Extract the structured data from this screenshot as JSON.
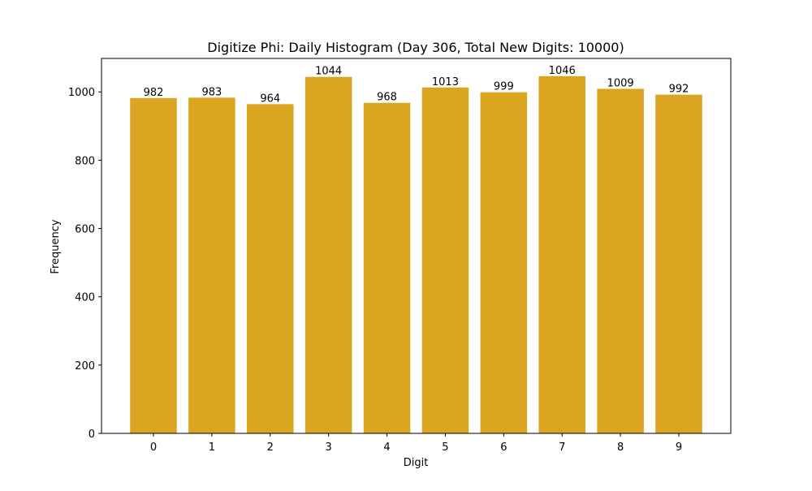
{
  "chart_data": {
    "type": "bar",
    "title": "Digitize Phi: Daily Histogram (Day 306, Total New Digits: 10000)",
    "xlabel": "Digit",
    "ylabel": "Frequency",
    "categories": [
      "0",
      "1",
      "2",
      "3",
      "4",
      "5",
      "6",
      "7",
      "8",
      "9"
    ],
    "values": [
      982,
      983,
      964,
      1044,
      968,
      1013,
      999,
      1046,
      1009,
      992
    ],
    "ylim": [
      0,
      1098
    ],
    "yticks": [
      0,
      200,
      400,
      600,
      800,
      1000
    ],
    "bar_color": "#DAA520",
    "grid": false,
    "show_data_labels": true
  }
}
